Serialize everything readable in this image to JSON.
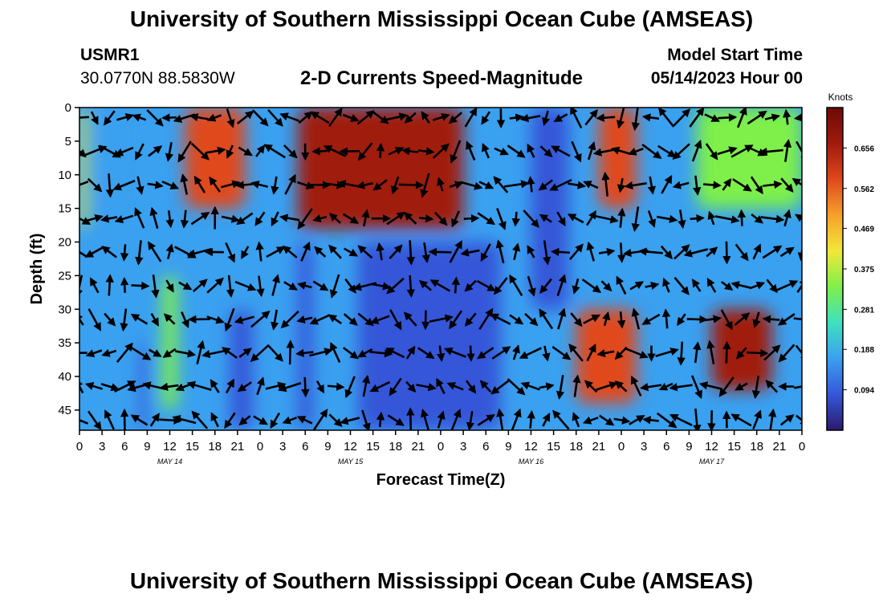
{
  "header": {
    "title": "University of Southern Mississippi Ocean Cube (AMSEAS)",
    "station": "USMR1",
    "coords": "30.0770N  88.5830W",
    "plot_title": "2-D Currents Speed-Magnitude",
    "model_start_label": "Model Start Time",
    "model_start_value": "05/14/2023 Hour 00"
  },
  "footer": {
    "title": "University of Southern Mississippi Ocean Cube (AMSEAS)"
  },
  "chart_data": {
    "type": "heatmap",
    "xlabel": "Forecast Time(Z)",
    "ylabel": "Depth (ft)",
    "x_tick_labels": [
      "0",
      "3",
      "6",
      "9",
      "12",
      "15",
      "18",
      "21",
      "0",
      "3",
      "6",
      "9",
      "12",
      "15",
      "18",
      "21",
      "0",
      "3",
      "6",
      "9",
      "12",
      "15",
      "18",
      "21",
      "0",
      "3",
      "6",
      "9",
      "12",
      "15",
      "18",
      "21",
      "0"
    ],
    "date_labels": [
      "MAY 14",
      "MAY 15",
      "MAY 16",
      "MAY 17"
    ],
    "xlim_hours": [
      0,
      96
    ],
    "y_ticks": [
      0,
      5,
      10,
      15,
      20,
      25,
      30,
      35,
      40,
      45
    ],
    "ylim": [
      0,
      48
    ],
    "colorbar": {
      "label": "Knots",
      "ticks": [
        0.094,
        0.188,
        0.281,
        0.375,
        0.469,
        0.562,
        0.656
      ],
      "range": [
        0,
        0.75
      ]
    },
    "speed_regions_knots": [
      {
        "hours": [
          0,
          1
        ],
        "depth": [
          0,
          18
        ],
        "speed": 0.42
      },
      {
        "hours": [
          4,
          5
        ],
        "depth": [
          0,
          15
        ],
        "speed": 0.15
      },
      {
        "hours": [
          14,
          22
        ],
        "depth": [
          0,
          15
        ],
        "speed": 0.6
      },
      {
        "hours": [
          29,
          51
        ],
        "depth": [
          0,
          18
        ],
        "speed": 0.68
      },
      {
        "hours": [
          60,
          65
        ],
        "depth": [
          0,
          30
        ],
        "speed": 0.12
      },
      {
        "hours": [
          69,
          74
        ],
        "depth": [
          0,
          15
        ],
        "speed": 0.6
      },
      {
        "hours": [
          82,
          96
        ],
        "depth": [
          0,
          15
        ],
        "speed": 0.3
      },
      {
        "hours": [
          11,
          13
        ],
        "depth": [
          25,
          45
        ],
        "speed": 0.36
      },
      {
        "hours": [
          8,
          9
        ],
        "depth": [
          35,
          48
        ],
        "speed": 0.08
      },
      {
        "hours": [
          20,
          23
        ],
        "depth": [
          30,
          48
        ],
        "speed": 0.06
      },
      {
        "hours": [
          29,
          31
        ],
        "depth": [
          20,
          48
        ],
        "speed": 0.08
      },
      {
        "hours": [
          66,
          74
        ],
        "depth": [
          30,
          44
        ],
        "speed": 0.62
      },
      {
        "hours": [
          84,
          92
        ],
        "depth": [
          30,
          42
        ],
        "speed": 0.66
      },
      {
        "hours": [
          37,
          56
        ],
        "depth": [
          20,
          48
        ],
        "speed": 0.12
      }
    ],
    "arrow_times_hours": [
      0,
      2,
      4,
      6,
      8,
      10,
      12,
      14,
      16,
      18,
      20,
      22,
      24,
      26,
      28,
      30,
      32,
      34,
      36,
      38,
      40,
      42,
      44,
      46,
      48,
      50,
      52,
      54,
      56,
      58,
      60,
      62,
      64,
      66,
      68,
      70,
      72,
      74,
      76,
      78,
      80,
      82,
      84,
      86,
      88,
      90,
      92,
      94,
      96
    ],
    "arrow_depths_ft": [
      0,
      5,
      10,
      15,
      20,
      25,
      30,
      35,
      40,
      45
    ],
    "grid": false
  },
  "colors": {
    "background": "#ffffff",
    "axis": "#000000",
    "arrow": "#000000",
    "colormap": [
      "#2b1a6e",
      "#3557d8",
      "#3aa0f0",
      "#3fe0c0",
      "#7ef04a",
      "#f2e83a",
      "#f7a02a",
      "#e0481c",
      "#a01a0c",
      "#6e0a08"
    ]
  }
}
